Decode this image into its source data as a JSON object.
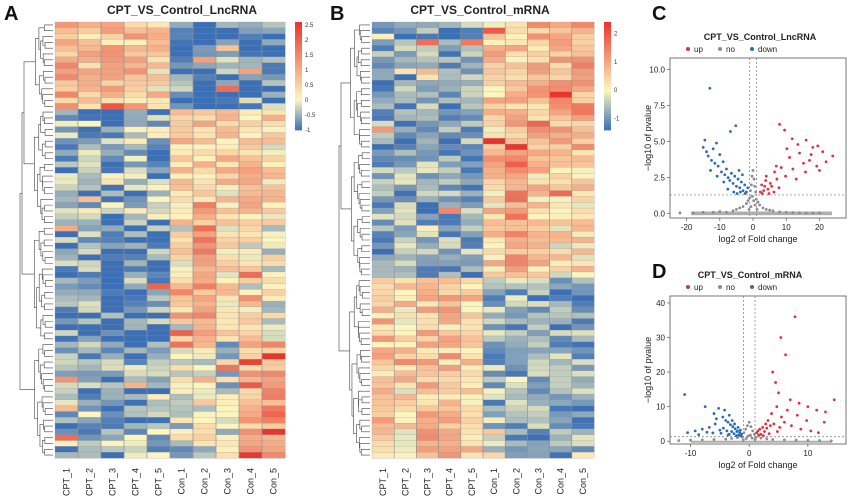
{
  "panels": {
    "A": {
      "letter": "A",
      "title": "CPT_VS_Control_LncRNA"
    },
    "B": {
      "letter": "B",
      "title": "CPT_VS_Control_mRNA"
    },
    "C": {
      "letter": "C",
      "title": "CPT_VS_Control_LncRNA"
    },
    "D": {
      "letter": "D",
      "title": "CPT_VS_Control_mRNA"
    }
  },
  "chart_data": [
    {
      "id": "A",
      "type": "heatmap",
      "title": "CPT_VS_Control_LncRNA",
      "columns": [
        "CPT_1",
        "CPT_2",
        "CPT_3",
        "CPT_4",
        "CPT_5",
        "Con_1",
        "Con_2",
        "Con_3",
        "Con_4",
        "Con_5"
      ],
      "rows": 75,
      "colorbar": {
        "ticks": [
          "2.5",
          "2",
          "1.5",
          "1",
          "0.5",
          "0",
          "-0.5",
          "-1"
        ],
        "min": -1,
        "max": 2.6,
        "low_color": "#3b6fb6",
        "mid_color": "#fdf6c0",
        "high_color": "#e8352b"
      },
      "row_blocks": [
        {
          "rows": 15,
          "means": [
            1.0,
            0.6,
            0.7,
            0.7,
            0.5,
            -0.8,
            -0.8,
            -0.8,
            -0.8,
            -0.8
          ]
        },
        {
          "rows": 20,
          "means": [
            -0.6,
            -0.5,
            -0.5,
            -0.5,
            -0.5,
            0.6,
            0.6,
            0.5,
            0.6,
            0.4
          ]
        },
        {
          "rows": 20,
          "means": [
            -0.8,
            -0.8,
            -0.8,
            -0.8,
            -0.8,
            0.2,
            1.2,
            0.4,
            0.2,
            0.0
          ]
        },
        {
          "rows": 20,
          "means": [
            -0.5,
            -0.6,
            -0.6,
            -0.6,
            -0.5,
            -0.2,
            0.0,
            -0.2,
            0.8,
            1.1
          ]
        }
      ]
    },
    {
      "id": "B",
      "type": "heatmap",
      "title": "CPT_VS_Control_mRNA",
      "columns": [
        "CPT_1",
        "CPT_2",
        "CPT_3",
        "CPT_4",
        "CPT_5",
        "Con_1",
        "Con_2",
        "Con_3",
        "Con_4",
        "Con_5"
      ],
      "rows": 75,
      "colorbar": {
        "ticks": [
          "2",
          "1",
          "0",
          "-1"
        ],
        "min": -1.4,
        "max": 2.4,
        "low_color": "#3b6fb6",
        "mid_color": "#fdf6c0",
        "high_color": "#e8352b"
      },
      "row_blocks": [
        {
          "rows": 22,
          "means": [
            -0.9,
            -0.9,
            -0.9,
            -1.0,
            -0.9,
            0.5,
            0.6,
            0.7,
            0.8,
            1.0
          ]
        },
        {
          "rows": 22,
          "means": [
            -0.8,
            -0.8,
            -0.8,
            -0.8,
            -0.8,
            0.4,
            1.1,
            0.5,
            0.3,
            0.4
          ]
        },
        {
          "rows": 31,
          "means": [
            0.6,
            0.4,
            0.7,
            0.7,
            0.6,
            -0.7,
            -0.7,
            -0.8,
            -0.8,
            -0.8
          ]
        }
      ]
    },
    {
      "id": "C",
      "type": "scatter",
      "subtype": "volcano",
      "title": "CPT_VS_Control_LncRNA",
      "legend": [
        {
          "label": "up",
          "color": "#e0313f"
        },
        {
          "label": "no",
          "color": "#8c8c8c"
        },
        {
          "label": "down",
          "color": "#2b6cb6"
        }
      ],
      "xlabel": "log2 of Fold change",
      "ylabel": "−log10 of pvalue",
      "xlim": [
        -25,
        28
      ],
      "ylim": [
        -0.3,
        10.8
      ],
      "xticks": [
        "-20",
        "-10",
        "0",
        "10",
        "20"
      ],
      "xtick_values": [
        -20,
        -10,
        0,
        10,
        20
      ],
      "yticks": [
        "0.0",
        "2.5",
        "5.0",
        "7.5",
        "10.0"
      ],
      "ytick_values": [
        0,
        2.5,
        5,
        7.5,
        10
      ],
      "fc_cutoff": [
        -1,
        1
      ],
      "p_cutoff": 1.3,
      "points": {
        "up": [
          [
            8,
            6.2
          ],
          [
            9.5,
            5.8
          ],
          [
            10.2,
            4.5
          ],
          [
            11,
            3.9
          ],
          [
            12,
            3.1
          ],
          [
            13.5,
            4.8
          ],
          [
            14,
            4.2
          ],
          [
            15.2,
            3.5
          ],
          [
            16,
            5.1
          ],
          [
            17.5,
            4.1
          ],
          [
            18,
            4.6
          ],
          [
            19.2,
            3.3
          ],
          [
            20,
            3.0
          ],
          [
            21,
            4.3
          ],
          [
            24,
            4.0
          ],
          [
            8.5,
            3.2
          ],
          [
            9.8,
            2.6
          ],
          [
            11.8,
            5.2
          ],
          [
            13,
            2.4
          ],
          [
            15.8,
            2.9
          ],
          [
            17,
            3.7
          ],
          [
            19.5,
            4.7
          ],
          [
            22,
            3.6
          ],
          [
            6.5,
            2.9
          ],
          [
            7.2,
            2.4
          ],
          [
            7.8,
            1.8
          ],
          [
            6.3,
            1.5
          ],
          [
            5.2,
            2.1
          ],
          [
            4.5,
            1.7
          ],
          [
            3.8,
            2.3
          ],
          [
            3.2,
            1.6
          ],
          [
            2.6,
            2.0
          ],
          [
            2.2,
            1.5
          ],
          [
            4.0,
            2.6
          ],
          [
            5.6,
            1.9
          ],
          [
            7.0,
            3.3
          ],
          [
            3.5,
            1.9
          ],
          [
            2.8,
            1.4
          ],
          [
            4.8,
            1.4
          ]
        ],
        "down": [
          [
            -13,
            8.7
          ],
          [
            -14.5,
            5.1
          ],
          [
            -15,
            4.6
          ],
          [
            -14,
            4.3
          ],
          [
            -13.5,
            4.0
          ],
          [
            -12.5,
            3.7
          ],
          [
            -12,
            4.5
          ],
          [
            -11.5,
            3.5
          ],
          [
            -11,
            4.9
          ],
          [
            -10.5,
            3.3
          ],
          [
            -10,
            4.1
          ],
          [
            -9.5,
            2.9
          ],
          [
            -9,
            3.6
          ],
          [
            -8.5,
            2.7
          ],
          [
            -8,
            3.1
          ],
          [
            -7.5,
            2.5
          ],
          [
            -7,
            2.3
          ],
          [
            -6.5,
            2.8
          ],
          [
            -6,
            2.1
          ],
          [
            -5.5,
            2.6
          ],
          [
            -5,
            1.9
          ],
          [
            -4.5,
            2.4
          ],
          [
            -4,
            1.8
          ],
          [
            -3.5,
            2.2
          ],
          [
            -3,
            1.6
          ],
          [
            -2.5,
            2.0
          ],
          [
            -2,
            1.5
          ],
          [
            -1.6,
            1.8
          ],
          [
            -6.8,
            5.7
          ],
          [
            -5.2,
            6.1
          ],
          [
            -7.6,
            1.7
          ],
          [
            -4.2,
            3.0
          ],
          [
            -3.2,
            2.7
          ],
          [
            -2.4,
            1.4
          ],
          [
            -8.8,
            2.2
          ],
          [
            -10.8,
            2.6
          ],
          [
            -12.8,
            3.0
          ],
          [
            -5.8,
            1.5
          ],
          [
            -4.8,
            1.4
          ],
          [
            -3.8,
            1.5
          ]
        ],
        "no": [
          [
            -22,
            0.05
          ],
          [
            -18,
            0.05
          ],
          [
            -15,
            0.1
          ],
          [
            -12,
            0.1
          ],
          [
            -10,
            0.15
          ],
          [
            -8,
            0.1
          ],
          [
            -6,
            0.2
          ],
          [
            -5,
            0.3
          ],
          [
            -4,
            0.4
          ],
          [
            -3,
            0.5
          ],
          [
            -2,
            0.7
          ],
          [
            -1.5,
            0.9
          ],
          [
            -1,
            1.1
          ],
          [
            -0.8,
            1.6
          ],
          [
            -0.5,
            2.0
          ],
          [
            -0.3,
            2.6
          ],
          [
            0,
            3.0
          ],
          [
            0.3,
            2.4
          ],
          [
            0.5,
            1.9
          ],
          [
            0.8,
            1.5
          ],
          [
            1,
            1.0
          ],
          [
            1.5,
            0.8
          ],
          [
            2,
            0.6
          ],
          [
            3,
            0.4
          ],
          [
            4,
            0.3
          ],
          [
            5,
            0.25
          ],
          [
            6,
            0.2
          ],
          [
            8,
            0.12
          ],
          [
            10,
            0.1
          ],
          [
            12,
            0.08
          ],
          [
            14,
            0.06
          ],
          [
            16,
            0.05
          ],
          [
            18,
            0.05
          ],
          [
            20,
            0.05
          ],
          [
            -0.6,
            0.5
          ],
          [
            0.6,
            0.6
          ],
          [
            -0.2,
            1.2
          ],
          [
            0.2,
            0.9
          ],
          [
            -1.2,
            0.3
          ],
          [
            1.2,
            0.3
          ]
        ]
      }
    },
    {
      "id": "D",
      "type": "scatter",
      "subtype": "volcano",
      "title": "CPT_VS_Control_mRNA",
      "legend": [
        {
          "label": "up",
          "color": "#e0313f"
        },
        {
          "label": "no",
          "color": "#8c8c8c"
        },
        {
          "label": "down",
          "color": "#2b6cb6"
        }
      ],
      "xlabel": "log2 of Fold change",
      "ylabel": "−log10 of pvalue",
      "xlim": [
        -13.5,
        16.5
      ],
      "ylim": [
        -0.8,
        42
      ],
      "xticks": [
        "-10",
        "0",
        "10"
      ],
      "xtick_values": [
        -10,
        0,
        10
      ],
      "yticks": [
        "0",
        "10",
        "20",
        "30",
        "40"
      ],
      "ytick_values": [
        0,
        10,
        20,
        30,
        40
      ],
      "fc_cutoff": [
        -1,
        1
      ],
      "p_cutoff": 1.3,
      "points": {
        "up": [
          [
            7.8,
            36
          ],
          [
            5.4,
            30
          ],
          [
            6.2,
            25
          ],
          [
            4.0,
            20
          ],
          [
            4.5,
            17
          ],
          [
            5.0,
            14
          ],
          [
            7.0,
            12
          ],
          [
            8.5,
            11
          ],
          [
            10,
            10
          ],
          [
            11.5,
            9
          ],
          [
            13,
            8.5
          ],
          [
            14.5,
            12
          ],
          [
            12.8,
            5.5
          ],
          [
            9.8,
            6
          ],
          [
            8.2,
            7.5
          ],
          [
            6.5,
            9
          ],
          [
            5.5,
            7
          ],
          [
            4.7,
            10
          ],
          [
            3.8,
            8
          ],
          [
            3.2,
            6
          ],
          [
            2.8,
            5
          ],
          [
            2.3,
            4
          ],
          [
            1.8,
            3.5
          ],
          [
            1.5,
            3
          ],
          [
            1.3,
            2.5
          ],
          [
            2.0,
            2
          ],
          [
            2.6,
            2.8
          ],
          [
            3.0,
            3.8
          ],
          [
            3.6,
            4.5
          ],
          [
            4.2,
            5
          ],
          [
            5.2,
            4
          ],
          [
            6.0,
            5.5
          ],
          [
            7.2,
            4.5
          ],
          [
            8.8,
            3.5
          ],
          [
            10.5,
            3
          ],
          [
            11.8,
            2.5
          ],
          [
            1.6,
            1.8
          ],
          [
            2.4,
            1.6
          ],
          [
            3.4,
            2.2
          ],
          [
            4.8,
            2.8
          ]
        ],
        "down": [
          [
            -11,
            13.5
          ],
          [
            -7.5,
            10
          ],
          [
            -6,
            8
          ],
          [
            -5.2,
            9.5
          ],
          [
            -4.5,
            7
          ],
          [
            -4,
            6
          ],
          [
            -3.6,
            5.5
          ],
          [
            -3.2,
            4.8
          ],
          [
            -2.8,
            4.2
          ],
          [
            -2.4,
            3.6
          ],
          [
            -2.0,
            3
          ],
          [
            -1.6,
            2.5
          ],
          [
            -1.3,
            2
          ],
          [
            -5.8,
            5
          ],
          [
            -6.8,
            4
          ],
          [
            -8.0,
            3.5
          ],
          [
            -9.2,
            3
          ],
          [
            -10.5,
            2.5
          ],
          [
            -3.8,
            3
          ],
          [
            -4.4,
            3.8
          ],
          [
            -5.0,
            3.2
          ],
          [
            -2.6,
            2.2
          ],
          [
            -3.0,
            2.8
          ],
          [
            -1.8,
            1.8
          ],
          [
            -2.2,
            1.6
          ],
          [
            -3.4,
            2
          ],
          [
            -4.8,
            2.3
          ],
          [
            -6.2,
            2.4
          ],
          [
            -7.2,
            2.6
          ],
          [
            -5.6,
            6.5
          ],
          [
            -4.2,
            9
          ],
          [
            -3.4,
            7.5
          ],
          [
            -2.9,
            6
          ],
          [
            -2.5,
            5
          ],
          [
            -1.9,
            4
          ],
          [
            -1.5,
            3.2
          ],
          [
            -2.1,
            2.8
          ],
          [
            -1.4,
            1.6
          ],
          [
            -3.6,
            1.8
          ],
          [
            -8.6,
            1.9
          ]
        ],
        "no": [
          [
            -12,
            0.2
          ],
          [
            -10,
            0.3
          ],
          [
            -8,
            0.4
          ],
          [
            -6,
            0.5
          ],
          [
            -4,
            0.6
          ],
          [
            -3,
            0.8
          ],
          [
            -2,
            1.0
          ],
          [
            -1.2,
            1.2
          ],
          [
            -0.9,
            2.5
          ],
          [
            -0.6,
            3.5
          ],
          [
            -0.3,
            4.5
          ],
          [
            0,
            5.5
          ],
          [
            0.3,
            4.2
          ],
          [
            0.6,
            3.0
          ],
          [
            0.9,
            2.0
          ],
          [
            1.2,
            1.1
          ],
          [
            2,
            0.9
          ],
          [
            3,
            0.7
          ],
          [
            4,
            0.5
          ],
          [
            6,
            0.4
          ],
          [
            8,
            0.3
          ],
          [
            10,
            0.25
          ],
          [
            12,
            0.2
          ],
          [
            14,
            0.15
          ],
          [
            -0.5,
            0.8
          ],
          [
            0.5,
            0.9
          ],
          [
            -0.2,
            1.5
          ],
          [
            0.2,
            1.8
          ],
          [
            -1.0,
            0.4
          ],
          [
            1.0,
            0.5
          ]
        ]
      }
    }
  ]
}
